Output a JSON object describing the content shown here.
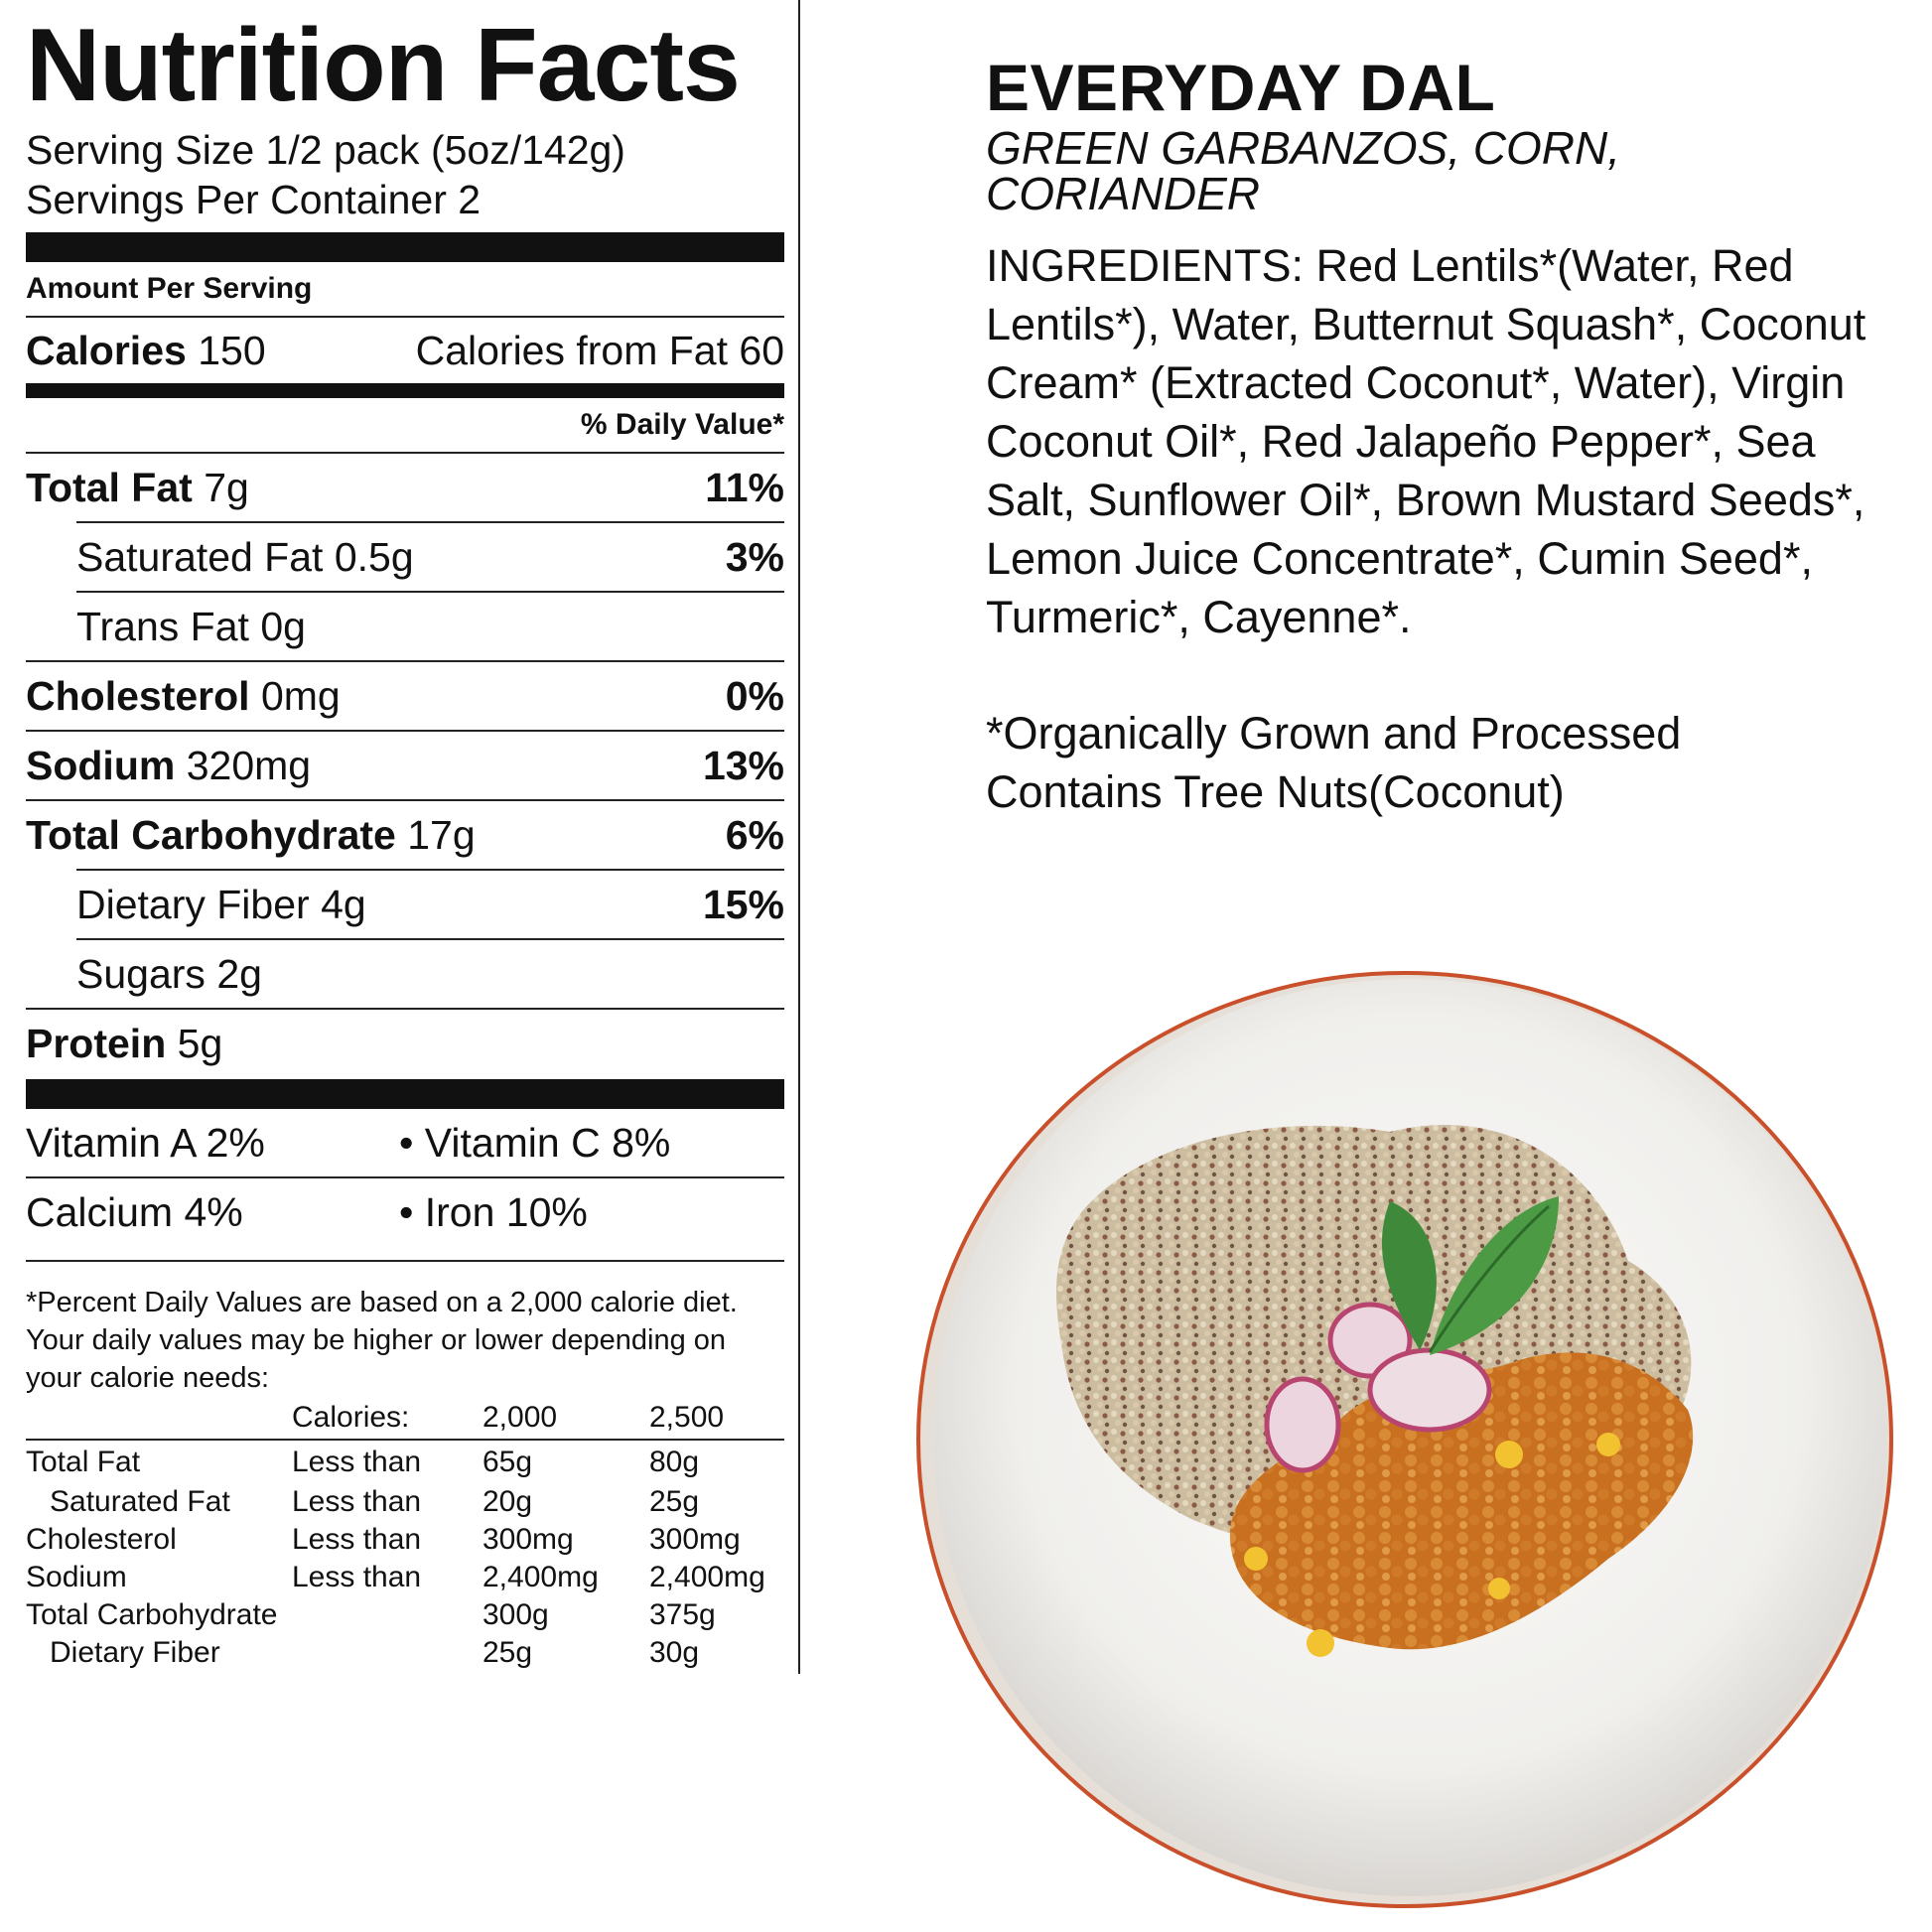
{
  "label": {
    "title": "Nutrition Facts",
    "serving_size": "Serving Size 1/2 pack (5oz/142g)",
    "servings_per_container": "Servings Per Container 2",
    "amount_per_serving": "Amount Per Serving",
    "calories_label": "Calories",
    "calories_value": "150",
    "calories_from_fat": "Calories from Fat 60",
    "daily_value_header": "% Daily Value*",
    "rows": [
      {
        "name": "Total Fat",
        "amount": "7g",
        "dv": "11%"
      },
      {
        "name": "Saturated Fat",
        "amount": "0.5g",
        "dv": "3%"
      },
      {
        "name": "Trans Fat",
        "amount": "0g",
        "dv": ""
      },
      {
        "name": "Cholesterol",
        "amount": "0mg",
        "dv": "0%"
      },
      {
        "name": "Sodium",
        "amount": "320mg",
        "dv": "13%"
      },
      {
        "name": "Total Carbohydrate",
        "amount": "17g",
        "dv": "6%"
      },
      {
        "name": "Dietary Fiber",
        "amount": "4g",
        "dv": "15%"
      },
      {
        "name": "Sugars",
        "amount": "2g",
        "dv": ""
      },
      {
        "name": "Protein",
        "amount": "5g",
        "dv": ""
      }
    ],
    "vitamins": [
      [
        "Vitamin A 2%",
        "• Vitamin C 8%"
      ],
      [
        "Calcium 4%",
        "• Iron 10%"
      ]
    ],
    "footnote": "*Percent Daily Values are based on a 2,000 calorie diet. Your daily values may be higher or lower depending on your calorie needs:",
    "ref_header": [
      "",
      "Calories:",
      "2,000",
      "2,500"
    ],
    "ref_rows": [
      [
        "Total Fat",
        "Less than",
        "65g",
        "80g"
      ],
      [
        "Saturated Fat",
        "Less than",
        "20g",
        "25g"
      ],
      [
        "Cholesterol",
        "Less than",
        "300mg",
        "300mg"
      ],
      [
        "Sodium",
        "Less than",
        "2,400mg",
        "2,400mg"
      ],
      [
        "Total Carbohydrate",
        "",
        "300g",
        "375g"
      ],
      [
        "Dietary Fiber",
        "",
        "25g",
        "30g"
      ]
    ]
  },
  "product": {
    "name": "EVERYDAY DAL",
    "subtitle": "GREEN GARBANZOS, CORN, CORIANDER",
    "ingredients": "INGREDIENTS: Red Lentils*(Water, Red Lentils*), Water, Butternut Squash*, Coconut Cream* (Extracted Coconut*, Water), Virgin Coconut Oil*, Red Jalapeño Pepper*, Sea Salt, Sunflower Oil*, Brown Mustard Seeds*, Lemon Juice Concentrate*, Cumin Seed*, Turmeric*, Cayenne*.",
    "organic_note": "*Organically Grown and Processed",
    "allergen_note": "Contains Tree Nuts(Coconut)"
  },
  "colors": {
    "plate": "#f3f2f0",
    "plate_rim": "#c9502a",
    "quinoa": "#c9b79a",
    "dal": "#d27a2c",
    "corn": "#f2c230",
    "radish": "#e7c9d4",
    "mint": "#3f8a3a"
  }
}
